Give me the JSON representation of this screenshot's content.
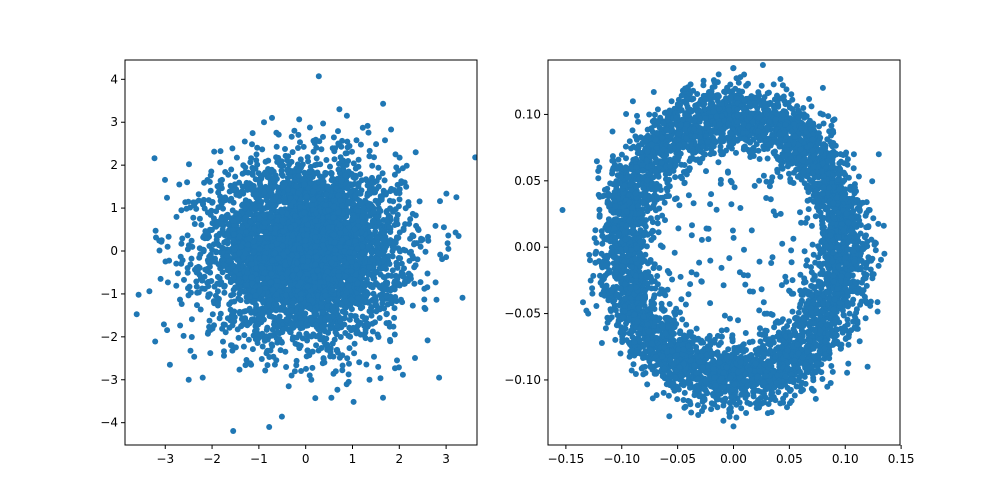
{
  "chart_data": [
    {
      "type": "scatter",
      "title": "",
      "xlabel": "",
      "ylabel": "",
      "xlim": [
        -3.86,
        3.66
      ],
      "ylim": [
        -4.52,
        4.45
      ],
      "xticks": [
        -3,
        -2,
        -1,
        0,
        1,
        2,
        3
      ],
      "yticks": [
        -4,
        -3,
        -2,
        -1,
        0,
        1,
        2,
        3,
        4
      ],
      "xtick_labels": [
        "−3",
        "−2",
        "−1",
        "0",
        "1",
        "2",
        "3"
      ],
      "ytick_labels": [
        "−4",
        "−3",
        "−2",
        "−1",
        "0",
        "1",
        "2",
        "3",
        "4"
      ],
      "color": "#1f77b4",
      "distribution": "2D standard normal cloud, about 5000 points, mean (0, 0), std 1",
      "series": [
        {
          "points": [
            [
              0.28,
              4.07
            ],
            [
              -0.78,
              -4.1
            ],
            [
              -3.57,
              -1.02
            ],
            [
              3.35,
              -1.09
            ],
            [
              3.22,
              1.25
            ],
            [
              0.55,
              -3.42
            ],
            [
              0.88,
              3.15
            ],
            [
              -2.9,
              -2.65
            ],
            [
              -2.5,
              -3.0
            ],
            [
              -2.2,
              -2.95
            ],
            [
              -0.72,
              3.1
            ],
            [
              2.85,
              -2.95
            ],
            [
              1.22,
              2.87
            ],
            [
              -2.95,
              0.1
            ],
            [
              -3.1,
              -0.65
            ],
            [
              2.35,
              2.3
            ],
            [
              -1.05,
              2.25
            ],
            [
              3.05,
              0.05
            ],
            [
              -2.7,
              1.55
            ],
            [
              1.95,
              -2.55
            ],
            [
              0.12,
              -3.0
            ],
            [
              -0.3,
              -2.9
            ],
            [
              0.92,
              -3.05
            ],
            [
              -1.3,
              2.55
            ],
            [
              1.55,
              -2.7
            ]
          ]
        }
      ]
    },
    {
      "type": "scatter",
      "title": "",
      "xlabel": "",
      "ylabel": "",
      "xlim": [
        -0.166,
        0.149
      ],
      "ylim": [
        -0.149,
        0.141
      ],
      "xticks": [
        -0.15,
        -0.1,
        -0.05,
        0.0,
        0.05,
        0.1,
        0.15
      ],
      "yticks": [
        -0.1,
        -0.05,
        0.0,
        0.05,
        0.1
      ],
      "xtick_labels": [
        "−0.15",
        "−0.10",
        "−0.05",
        "0.00",
        "0.05",
        "0.10",
        "0.15"
      ],
      "ytick_labels": [
        "−0.10",
        "−0.05",
        "0.00",
        "0.05",
        "0.10"
      ],
      "color": "#1f77b4",
      "distribution": "annulus, about 5000 points, radius ≈ 0.08–0.13",
      "series": [
        {
          "points": [
            [
              -0.153,
              0.028
            ],
            [
              0.0,
              0.135
            ],
            [
              0.135,
              -0.005
            ],
            [
              0.0,
              -0.135
            ],
            [
              0.13,
              0.07
            ],
            [
              -0.13,
              -0.05
            ],
            [
              0.12,
              -0.09
            ],
            [
              -0.09,
              0.11
            ],
            [
              -0.12,
              0.06
            ],
            [
              0.08,
              0.12
            ],
            [
              0.03,
              -0.05
            ],
            [
              -0.02,
              0.04
            ]
          ]
        }
      ]
    }
  ]
}
